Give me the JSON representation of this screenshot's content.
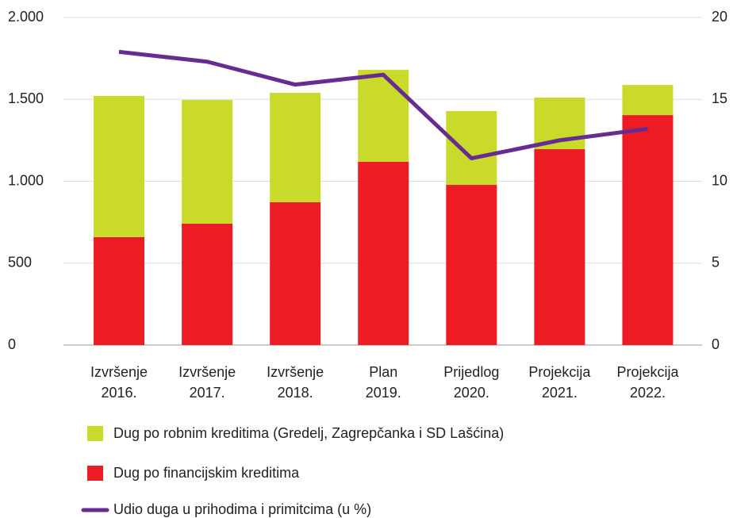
{
  "chart_data": {
    "type": "bar",
    "categories": [
      [
        "Izvršenje",
        "2016."
      ],
      [
        "Izvršenje",
        "2017."
      ],
      [
        "Izvršenje",
        "2018."
      ],
      [
        "Plan",
        "2019."
      ],
      [
        "Prijedlog",
        "2020."
      ],
      [
        "Projekcija",
        "2021."
      ],
      [
        "Projekcija",
        "2022."
      ]
    ],
    "stacked": true,
    "series": [
      {
        "name": "Dug po robnim kreditima (Gredelj, Zagrepčanka i SD Lašćina)",
        "color": "#c9da2a",
        "type": "bar",
        "values": [
          862,
          755,
          668,
          561,
          451,
          315,
          184
        ]
      },
      {
        "name": "Dug po financijskim kreditima",
        "color": "#ed1c24",
        "type": "bar",
        "values": [
          659,
          741,
          872,
          1119,
          978,
          1196,
          1404
        ]
      },
      {
        "name": "Udio duga u prihodima i primitcima (u %)",
        "color": "#662d91",
        "type": "line",
        "axis": "y2",
        "values": [
          17.9,
          17.3,
          15.9,
          16.5,
          11.4,
          12.5,
          13.2
        ]
      }
    ],
    "ylim": [
      0,
      2000
    ],
    "yticks": [
      0,
      500,
      {
        "value": 1000,
        "label": "1.000"
      },
      {
        "value": 1500,
        "label": "1.500"
      },
      {
        "value": 2000,
        "label": "2.000"
      }
    ],
    "y2lim": [
      0,
      20
    ],
    "y2ticks": [
      0,
      5,
      10,
      15,
      20
    ],
    "grid": true
  }
}
